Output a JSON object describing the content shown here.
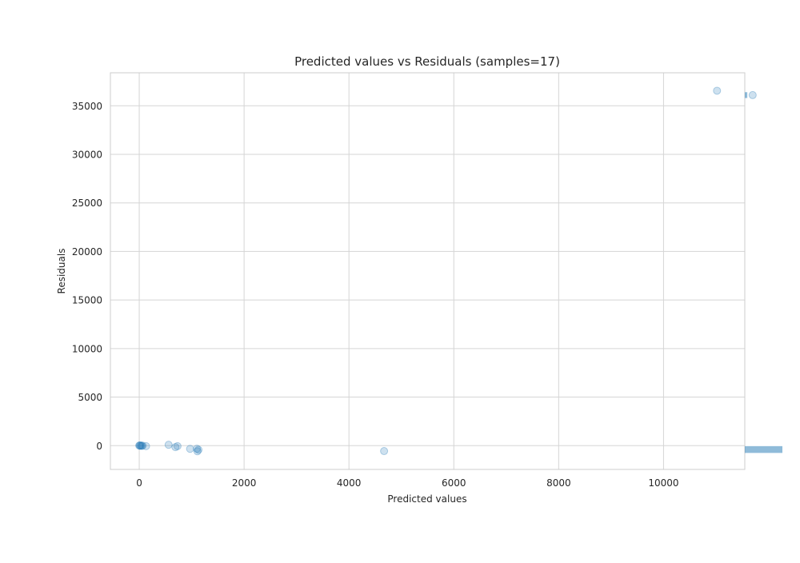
{
  "chart_data": {
    "type": "scatter",
    "title": "Predicted values vs Residuals (samples=17)",
    "xlabel": "Predicted values",
    "ylabel": "Residuals",
    "xlim": [
      -550,
      11550
    ],
    "ylim": [
      -2450,
      38400
    ],
    "x_ticks": [
      0,
      2000,
      4000,
      6000,
      8000,
      10000
    ],
    "y_ticks": [
      0,
      5000,
      10000,
      15000,
      20000,
      25000,
      30000,
      35000
    ],
    "grid": true,
    "point_color": "#1f77b4",
    "point_alpha": 0.22,
    "points": [
      {
        "x": 0,
        "y": 0
      },
      {
        "x": 10,
        "y": 30
      },
      {
        "x": 20,
        "y": -20
      },
      {
        "x": 35,
        "y": 10
      },
      {
        "x": 50,
        "y": -30
      },
      {
        "x": 65,
        "y": 0
      },
      {
        "x": 130,
        "y": -50
      },
      {
        "x": 560,
        "y": 90
      },
      {
        "x": 690,
        "y": -150
      },
      {
        "x": 730,
        "y": -50
      },
      {
        "x": 970,
        "y": -330
      },
      {
        "x": 1100,
        "y": -320
      },
      {
        "x": 1110,
        "y": -580
      },
      {
        "x": 1130,
        "y": -420
      },
      {
        "x": 4670,
        "y": -560
      },
      {
        "x": 11020,
        "y": 36550
      },
      {
        "x": 11700,
        "y": 36100
      }
    ],
    "marginal_histogram": {
      "orientation": "horizontal",
      "color": "#1f77b4",
      "alpha": 0.5,
      "bins": [
        {
          "y_from": -750,
          "y_to": -50,
          "count": 15
        },
        {
          "y_from": 35800,
          "y_to": 36400,
          "count": 1
        }
      ]
    }
  }
}
